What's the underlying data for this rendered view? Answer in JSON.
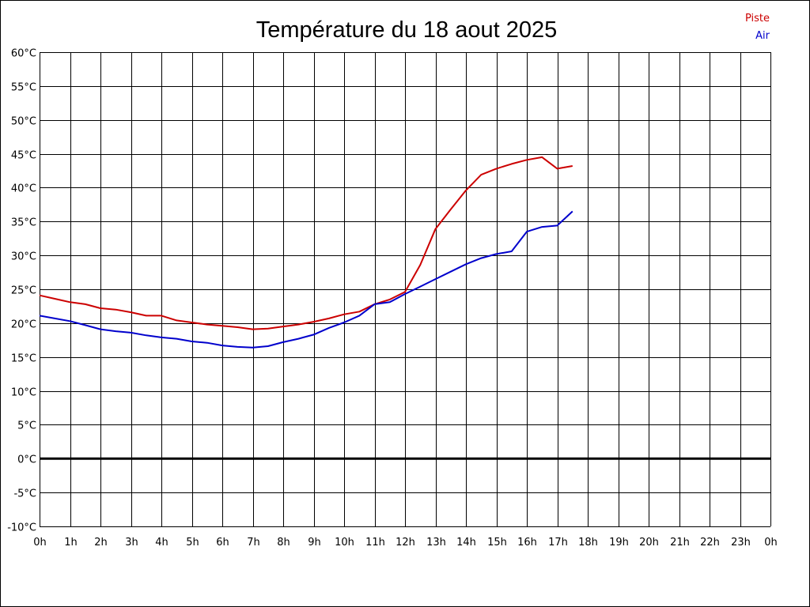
{
  "chart_data": {
    "type": "line",
    "title": "Température du 18 aout 2025",
    "xlabel": "",
    "ylabel": "",
    "x_tick_labels": [
      "0h",
      "1h",
      "2h",
      "3h",
      "4h",
      "5h",
      "6h",
      "7h",
      "8h",
      "9h",
      "10h",
      "11h",
      "12h",
      "13h",
      "14h",
      "15h",
      "16h",
      "17h",
      "18h",
      "19h",
      "20h",
      "21h",
      "22h",
      "23h",
      "0h"
    ],
    "y_tick_labels": [
      "60°C",
      "55°C",
      "50°C",
      "45°C",
      "40°C",
      "35°C",
      "30°C",
      "25°C",
      "20°C",
      "15°C",
      "10°C",
      "5°C",
      "0°C",
      "-5°C",
      "-10°C"
    ],
    "xlim": [
      0,
      24
    ],
    "ylim": [
      -10,
      60
    ],
    "grid": true,
    "zero_line": true,
    "legend_position": "top-right",
    "series": [
      {
        "name": "Piste",
        "color": "#cc0000",
        "points": [
          [
            0,
            24.1
          ],
          [
            0.5,
            23.6
          ],
          [
            1,
            23.1
          ],
          [
            1.5,
            22.8
          ],
          [
            2,
            22.2
          ],
          [
            2.5,
            22.0
          ],
          [
            3,
            21.6
          ],
          [
            3.5,
            21.1
          ],
          [
            4,
            21.1
          ],
          [
            4.5,
            20.4
          ],
          [
            5,
            20.1
          ],
          [
            5.5,
            19.8
          ],
          [
            6,
            19.6
          ],
          [
            6.5,
            19.4
          ],
          [
            7,
            19.1
          ],
          [
            7.5,
            19.2
          ],
          [
            8,
            19.5
          ],
          [
            8.5,
            19.8
          ],
          [
            9,
            20.2
          ],
          [
            9.5,
            20.7
          ],
          [
            10,
            21.3
          ],
          [
            10.5,
            21.7
          ],
          [
            11,
            22.8
          ],
          [
            11.5,
            23.5
          ],
          [
            12,
            24.6
          ],
          [
            12.5,
            28.6
          ],
          [
            13,
            33.9
          ],
          [
            13.5,
            36.8
          ],
          [
            14,
            39.6
          ],
          [
            14.5,
            41.9
          ],
          [
            15,
            42.8
          ],
          [
            15.5,
            43.5
          ],
          [
            16,
            44.1
          ],
          [
            16.5,
            44.5
          ],
          [
            17,
            42.8
          ],
          [
            17.5,
            43.2
          ]
        ]
      },
      {
        "name": "Air",
        "color": "#0000cc",
        "points": [
          [
            0,
            21.1
          ],
          [
            0.5,
            20.7
          ],
          [
            1,
            20.3
          ],
          [
            1.5,
            19.7
          ],
          [
            2,
            19.1
          ],
          [
            2.5,
            18.8
          ],
          [
            3,
            18.6
          ],
          [
            3.5,
            18.2
          ],
          [
            4,
            17.9
          ],
          [
            4.5,
            17.7
          ],
          [
            5,
            17.3
          ],
          [
            5.5,
            17.1
          ],
          [
            6,
            16.7
          ],
          [
            6.5,
            16.5
          ],
          [
            7,
            16.4
          ],
          [
            7.5,
            16.6
          ],
          [
            8,
            17.2
          ],
          [
            8.5,
            17.7
          ],
          [
            9,
            18.3
          ],
          [
            9.5,
            19.3
          ],
          [
            10,
            20.1
          ],
          [
            10.5,
            21.1
          ],
          [
            11,
            22.8
          ],
          [
            11.5,
            23.1
          ],
          [
            12,
            24.3
          ],
          [
            12.5,
            25.4
          ],
          [
            13,
            26.5
          ],
          [
            13.5,
            27.6
          ],
          [
            14,
            28.7
          ],
          [
            14.5,
            29.6
          ],
          [
            15,
            30.2
          ],
          [
            15.5,
            30.6
          ],
          [
            16,
            33.5
          ],
          [
            16.5,
            34.2
          ],
          [
            17,
            34.4
          ],
          [
            17.5,
            36.5
          ]
        ]
      }
    ]
  }
}
